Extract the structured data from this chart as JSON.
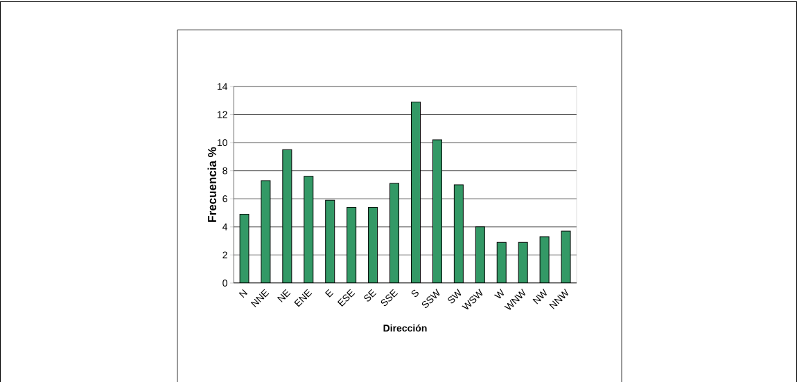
{
  "chart_data": {
    "type": "bar",
    "xlabel": "Dirección",
    "ylabel": "Frecuencia %",
    "categories": [
      "N",
      "NNE",
      "NE",
      "ENE",
      "E",
      "ESE",
      "SE",
      "SSE",
      "S",
      "SSW",
      "SW",
      "WSW",
      "W",
      "WNW",
      "NW",
      "NNW"
    ],
    "values": [
      4.9,
      7.3,
      9.5,
      7.6,
      5.9,
      5.4,
      5.4,
      7.1,
      12.9,
      10.2,
      7.0,
      4.0,
      2.9,
      2.9,
      3.3,
      3.7
    ],
    "color": "#339966",
    "ylim": [
      0,
      14
    ],
    "yticks": [
      0,
      2,
      4,
      6,
      8,
      10,
      12,
      14
    ],
    "grid": "y"
  }
}
